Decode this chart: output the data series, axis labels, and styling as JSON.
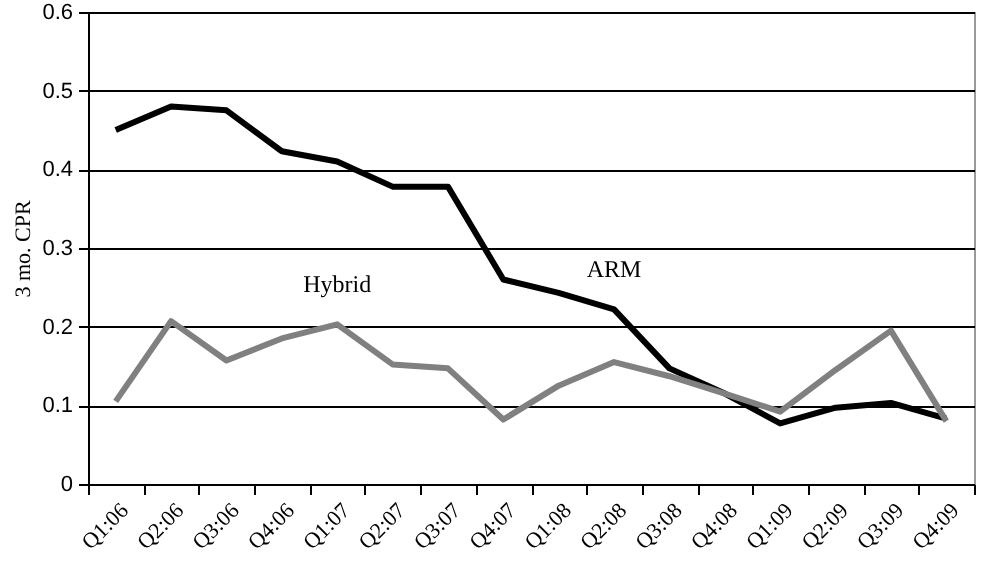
{
  "chart_data": {
    "type": "line",
    "ylabel": "3 mo. CPR",
    "categories": [
      "Q1:06",
      "Q2:06",
      "Q3:06",
      "Q4:06",
      "Q1:07",
      "Q2:07",
      "Q3:07",
      "Q4:07",
      "Q1:08",
      "Q2:08",
      "Q3:08",
      "Q4:08",
      "Q1:09",
      "Q2:09",
      "Q3:09",
      "Q4:09"
    ],
    "series": [
      {
        "name": "ARM",
        "color": "#000000",
        "values": [
          0.45,
          0.48,
          0.475,
          0.423,
          0.41,
          0.378,
          0.378,
          0.26,
          0.243,
          0.222,
          0.147,
          0.115,
          0.077,
          0.097,
          0.103,
          0.083
        ]
      },
      {
        "name": "Hybrid",
        "color": "#808080",
        "values": [
          0.105,
          0.207,
          0.157,
          0.185,
          0.203,
          0.152,
          0.147,
          0.082,
          0.125,
          0.155,
          0.137,
          0.115,
          0.092,
          0.145,
          0.195,
          0.08
        ]
      }
    ],
    "ylim": [
      0,
      0.6
    ],
    "yticks": [
      0,
      0.1,
      0.2,
      0.3,
      0.4,
      0.5,
      0.6
    ],
    "grid": "y",
    "marker": "none",
    "line_style": "solid"
  }
}
